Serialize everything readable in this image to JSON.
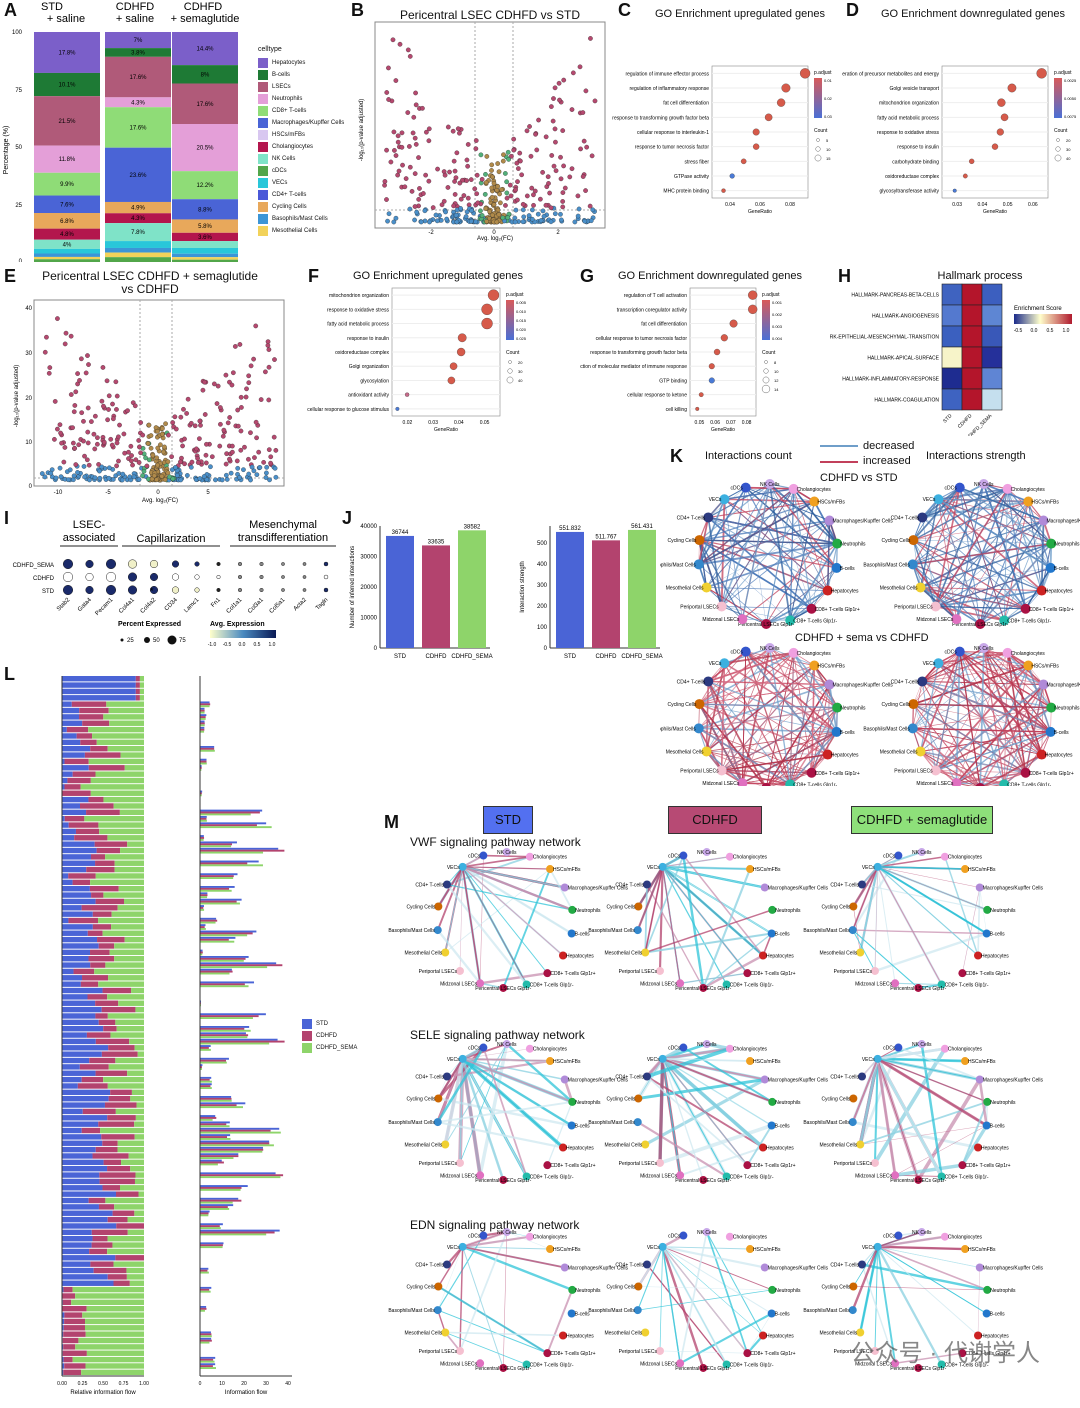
{
  "panels": {
    "A": {
      "label": "A",
      "ylabel": "Percentage (%)",
      "columns": [
        "STD\n+ saline",
        "CDHFD\n+ saline",
        "CDHFD\n+ semaglutide"
      ],
      "legend_title": "celltype",
      "legend": [
        {
          "name": "Hepatocytes",
          "color": "#7b5fc9"
        },
        {
          "name": "B-cells",
          "color": "#1e7a35"
        },
        {
          "name": "LSECs",
          "color": "#b05a79"
        },
        {
          "name": "Neutrophils",
          "color": "#e49fd8"
        },
        {
          "name": "CD8+ T-cells",
          "color": "#8fdc77"
        },
        {
          "name": "Macrophages/Kupffer Cells",
          "color": "#4a64d6"
        },
        {
          "name": "HSCs/mFBs",
          "color": "#d8c7f0"
        },
        {
          "name": "Cholangiocytes",
          "color": "#b3164d"
        },
        {
          "name": "NK Cells",
          "color": "#7fe3c8"
        },
        {
          "name": "cDCs",
          "color": "#52a64a"
        },
        {
          "name": "VECs",
          "color": "#29c7d9"
        },
        {
          "name": "CD4+ T-cells",
          "color": "#4a58d8"
        },
        {
          "name": "Cycling Cells",
          "color": "#e8a85b"
        },
        {
          "name": "Basophils/Mast Cells",
          "color": "#3c95d6"
        },
        {
          "name": "Mesothelial Cells",
          "color": "#f2d25a"
        }
      ],
      "col1_labels": [
        "17.8%",
        "10.1%",
        "21.5%",
        "11.8%",
        "9.9%",
        "7.6%",
        "6.8%",
        "4.8%",
        "4%"
      ],
      "col2_labels": [
        "7%",
        "3.8%",
        "17.6%",
        "4.3%",
        "17.6%",
        "23.6%",
        "4.9%",
        "4.3%",
        "7.8%"
      ],
      "col3_labels": [
        "14.4%",
        "8%",
        "17.6%",
        "20.5%",
        "12.2%",
        "8.8%",
        "5.8%",
        "3.6%"
      ]
    },
    "B": {
      "label": "B",
      "title": "Pericentral LSEC CDHFD vs STD",
      "xlabel": "Avg. log₂(FC)",
      "ylabel": "-log₁₀(p-value adjusted)"
    },
    "C": {
      "label": "C",
      "title": "GO Enrichment upregulated genes",
      "xlabel": "GeneRatio",
      "terms": [
        "regulation of immune effector process",
        "regulation of inflammatory response",
        "fat cell differentiation",
        "response to transforming growth factor beta",
        "cellular response to interleukin-1",
        "response to tumor necrosis factor",
        "stress fiber",
        "GTPase activity",
        "MHC protein binding"
      ],
      "xticks": [
        "0.04",
        "0.06",
        "0.08"
      ],
      "legend_padj": "p.adjust",
      "legend_count": "Count",
      "padj_ticks": [
        "0.01",
        "0.02",
        "0.03"
      ],
      "count_ticks": [
        "5",
        "10",
        "15"
      ]
    },
    "D": {
      "label": "D",
      "title": "GO Enrichment downregulated genes",
      "xlabel": "GeneRatio",
      "terms": [
        "generation of precursor metabolites and energy",
        "Golgi vesicle transport",
        "mitochondrion organization",
        "fatty acid metabolic process",
        "response to oxidative stress",
        "response to insulin",
        "carbohydrate binding",
        "oxidoreductase complex",
        "glycosyltransferase activity"
      ],
      "xticks": [
        "0.03",
        "0.04",
        "0.05",
        "0.06"
      ],
      "legend_padj": "p.adjust",
      "legend_count": "Count",
      "padj_ticks": [
        "0.0025",
        "0.0050",
        "0.0075"
      ],
      "count_ticks": [
        "20",
        "30",
        "40"
      ]
    },
    "E": {
      "label": "E",
      "title": "Pericentral LSEC CDHFD + semaglutide\nvs CDHFD",
      "xlabel": "Avg. log₂(FC)",
      "ylabel": "-log₁₀(p-value adjusted)"
    },
    "F": {
      "label": "F",
      "title": "GO Enrichment upregulated genes",
      "xlabel": "GeneRatio",
      "terms": [
        "mitochondrion organization",
        "response to oxidative stress",
        "fatty acid metabolic process",
        "response to insulin",
        "oxidoreductase complex",
        "Golgi organization",
        "glycosylation",
        "antioxidant activity",
        "cellular response to glucose stimulus"
      ],
      "xticks": [
        "0.02",
        "0.03",
        "0.04",
        "0.05"
      ],
      "legend_padj": "p.adjust",
      "legend_count": "Count",
      "padj_ticks": [
        "0.005",
        "0.010",
        "0.015",
        "0.020",
        "0.025"
      ],
      "count_ticks": [
        "20",
        "30",
        "40"
      ]
    },
    "G": {
      "label": "G",
      "title": "GO Enrichment downregulated genes",
      "xlabel": "GeneRatio",
      "terms": [
        "regulation of T cell activation",
        "transcription coregulator activity",
        "fat cell differentiation",
        "cellular response to tumor necrosis factor",
        "response to transforming growth factor beta",
        "production of molecular mediator of immune response",
        "GTP binding",
        "cellular response to ketone",
        "cell killing"
      ],
      "xticks": [
        "0.05",
        "0.06",
        "0.07",
        "0.08"
      ],
      "legend_padj": "p.adjust",
      "legend_count": "Count",
      "padj_ticks": [
        "0.001",
        "0.002",
        "0.003",
        "0.004"
      ],
      "count_ticks": [
        "8",
        "10",
        "12",
        "14"
      ]
    },
    "H": {
      "label": "H",
      "title": "Hallmark process",
      "legend": "Enrichment Score",
      "scale": [
        "-0.5",
        "0.0",
        "0.5",
        "1.0"
      ],
      "rows": [
        "HALLMARK-PANCREAS-BETA-CELLS",
        "HALLMARK-ANGIOGENESIS",
        "HALLMARK-EPITHELIAL-MESENCHYMAL-TRANSITION",
        "HALLMARK-APICAL-SURFACE",
        "HALLMARK-INFLAMMATORY-RESPONSE",
        "HALLMARK-COAGULATION"
      ],
      "cols": [
        "STD",
        "CDHFD",
        "CDHFD_SEMA"
      ]
    },
    "I": {
      "label": "I",
      "groups": [
        "LSEC-\nassociated",
        "Capillarization",
        "Mesenchymal\ntransdifferentiation"
      ],
      "rows": [
        "CDHFD_SEMA",
        "CDHFD",
        "STD"
      ],
      "genes": [
        "Stab2",
        "Gata4",
        "Pecam1",
        "Col4a1",
        "Col4a2",
        "CD34",
        "Lamc1",
        "Fn1",
        "Col1a1",
        "Col3a1",
        "Col5a1",
        "Acta2",
        "Tagln"
      ],
      "legend_pct": "Percent Expressed",
      "pct_ticks": [
        "25",
        "50",
        "75"
      ],
      "legend_expr": "Avg. Expression",
      "expr_ticks": [
        "-1.0",
        "-0.5",
        "0.0",
        "0.5",
        "1.0"
      ]
    },
    "J": {
      "label": "J",
      "left": {
        "ylabel": "Number of inferred interactions",
        "categories": [
          "STD",
          "CDHFD",
          "CDHFD_SEMA"
        ],
        "values": [
          36744,
          33635,
          38582
        ],
        "value_labels": [
          "36744",
          "33635",
          "38582"
        ],
        "yticks": [
          "0",
          "10000",
          "20000",
          "30000",
          "40000"
        ]
      },
      "right": {
        "ylabel": "Interaction strength",
        "categories": [
          "STD",
          "CDHFD",
          "CDHFD_SEMA"
        ],
        "values": [
          551.832,
          511.767,
          561.431
        ],
        "value_labels": [
          "551.832",
          "511.767",
          "561.431"
        ],
        "yticks": [
          "0",
          "100",
          "200",
          "300",
          "400",
          "500"
        ]
      }
    },
    "K": {
      "label": "K",
      "legend_decreased": "decreased",
      "legend_increased": "increased",
      "col1": "Interactions count",
      "col2": "Interactions strength",
      "row1": "CDHFD vs STD",
      "row2": "CDHFD + sema vs CDHFD"
    },
    "L": {
      "label": "L",
      "legend": [
        "STD",
        "CDHFD",
        "CDHFD_SEMA"
      ],
      "xlabel_left": "Relative information flow",
      "xlabel_right": "Information flow",
      "xticks_left": [
        "0.00",
        "0.25",
        "0.50",
        "0.75",
        "1.00"
      ],
      "xticks_right": [
        "0",
        "10",
        "20",
        "30",
        "40"
      ]
    },
    "M": {
      "label": "M",
      "headers": [
        "STD",
        "CDHFD",
        "CDHFD + semaglutide"
      ],
      "rows": [
        "VWF signaling pathway network",
        "SELE signaling pathway network",
        "EDN signaling pathway network"
      ]
    }
  },
  "network_nodes": [
    "Cholangiocytes",
    "HSCs/mFBs",
    "Macrophages/Kupffer Cells",
    "Neutrophils",
    "B-cells",
    "Hepatocytes",
    "CD8+ T-cells Glp1r+",
    "CD8+ T-cells Glp1r-",
    "Pericentral LSECs Glp1r-",
    "Midzonal LSECs",
    "Periportal LSECs",
    "Mesothelial Cells",
    "Basophils/Mast Cells",
    "Cycling Cells",
    "CD4+ T-cells",
    "VECs",
    "cDCs",
    "NK Cells"
  ],
  "watermark": "公众号 · 代谢学人",
  "chart_data": [
    {
      "type": "bar",
      "categories": [
        "STD",
        "CDHFD",
        "CDHFD_SEMA"
      ],
      "values": [
        36744,
        33635,
        38582
      ],
      "ylabel": "Number of inferred interactions",
      "ylim": [
        0,
        40000
      ]
    },
    {
      "type": "bar",
      "categories": [
        "STD",
        "CDHFD",
        "CDHFD_SEMA"
      ],
      "values": [
        551.832,
        511.767,
        561.431
      ],
      "ylabel": "Interaction strength",
      "ylim": [
        0,
        600
      ]
    }
  ]
}
